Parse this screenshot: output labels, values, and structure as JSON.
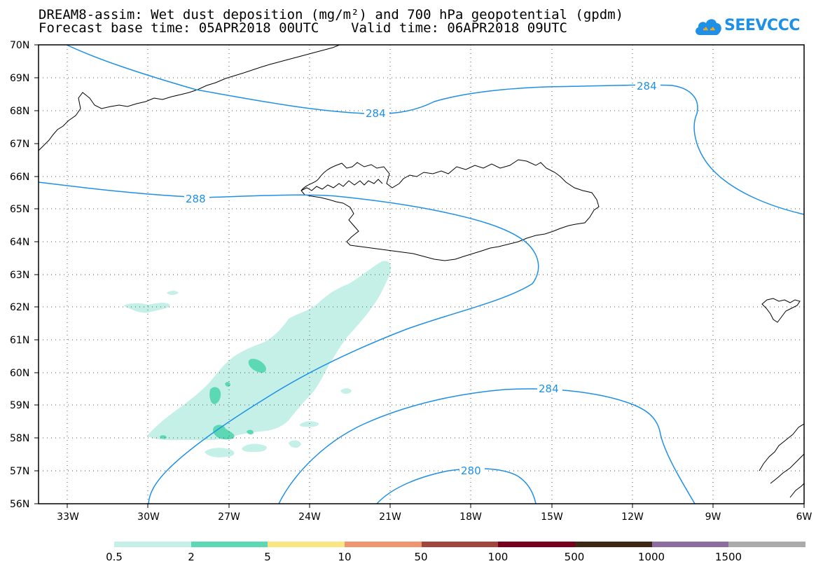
{
  "title": {
    "line1": "DREAM8-assim: Wet dust deposition (mg/m²) and 700 hPa geopotential (gpdm)",
    "line2": "Forecast base time: 05APR2018 00UTC    Valid time: 06APR2018 09UTC"
  },
  "logo": {
    "text": "SEEVCCC",
    "icon": "cloud-icon",
    "color": "#1e90e6"
  },
  "map": {
    "lat_labels": [
      "70N",
      "69N",
      "68N",
      "67N",
      "66N",
      "65N",
      "64N",
      "63N",
      "62N",
      "61N",
      "60N",
      "59N",
      "58N",
      "57N",
      "56N"
    ],
    "lon_labels": [
      "33W",
      "30W",
      "27W",
      "24W",
      "21W",
      "18W",
      "15W",
      "12W",
      "9W",
      "6W"
    ],
    "lat_range": [
      56,
      70
    ],
    "lon_range": [
      -34.5,
      -6
    ],
    "grid": "dotted",
    "contour_color": "#1e90e6",
    "coast_color": "#000000",
    "contour_labels": [
      "284",
      "284",
      "288",
      "284",
      "280"
    ]
  },
  "legend": {
    "colors": [
      "#c4f0e8",
      "#5cd8b4",
      "#fae682",
      "#f0966e",
      "#a0463c",
      "#78001e",
      "#3c2814",
      "#8c6e9e",
      "#aaaaaa"
    ],
    "labels": [
      "0.5",
      "2",
      "5",
      "10",
      "50",
      "100",
      "500",
      "1000",
      "1500"
    ]
  }
}
